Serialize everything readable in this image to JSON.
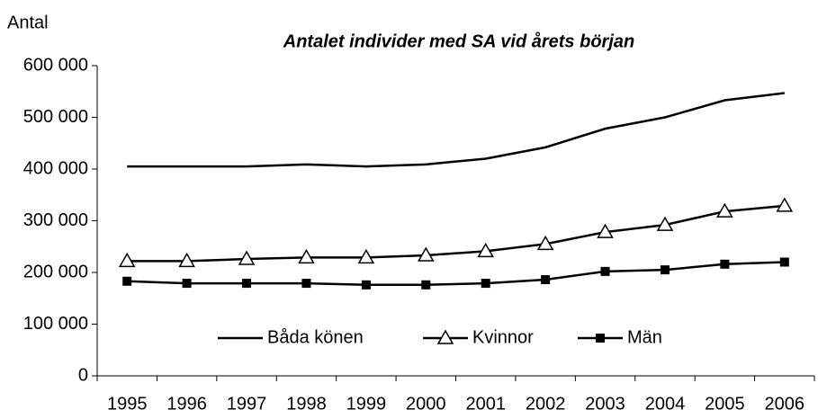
{
  "chart_data": {
    "type": "line",
    "title": "Antalet individer med SA vid årets början",
    "ylabel": "Antal",
    "categories": [
      "1995",
      "1996",
      "1997",
      "1998",
      "1999",
      "2000",
      "2001",
      "2002",
      "2003",
      "2004",
      "2005",
      "2006"
    ],
    "series": [
      {
        "name": "Båda könen",
        "color": "#000000",
        "marker": "none",
        "values": [
          405000,
          405000,
          405000,
          409000,
          405000,
          409000,
          420000,
          442000,
          478000,
          500000,
          533000,
          547000
        ]
      },
      {
        "name": "Kvinnor",
        "color": "#000000",
        "marker": "triangle",
        "values": [
          222000,
          222000,
          226000,
          229000,
          229000,
          233000,
          241000,
          255000,
          278000,
          292000,
          318000,
          329000
        ]
      },
      {
        "name": "Män",
        "color": "#000000",
        "marker": "square",
        "values": [
          183000,
          179000,
          179000,
          179000,
          176000,
          176000,
          179000,
          186000,
          202000,
          205000,
          216000,
          220000
        ]
      }
    ],
    "ylim": [
      0,
      600000
    ],
    "yticks": [
      0,
      {
        "value": 100000,
        "label": "100 000"
      },
      {
        "value": 200000,
        "label": "200 000"
      },
      {
        "value": 300000,
        "label": "300 000"
      },
      {
        "value": 400000,
        "label": "400 000"
      },
      {
        "value": 500000,
        "label": "500 000"
      },
      {
        "value": 600000,
        "label": "600 000"
      }
    ],
    "grid": false,
    "legend": "lower center"
  }
}
